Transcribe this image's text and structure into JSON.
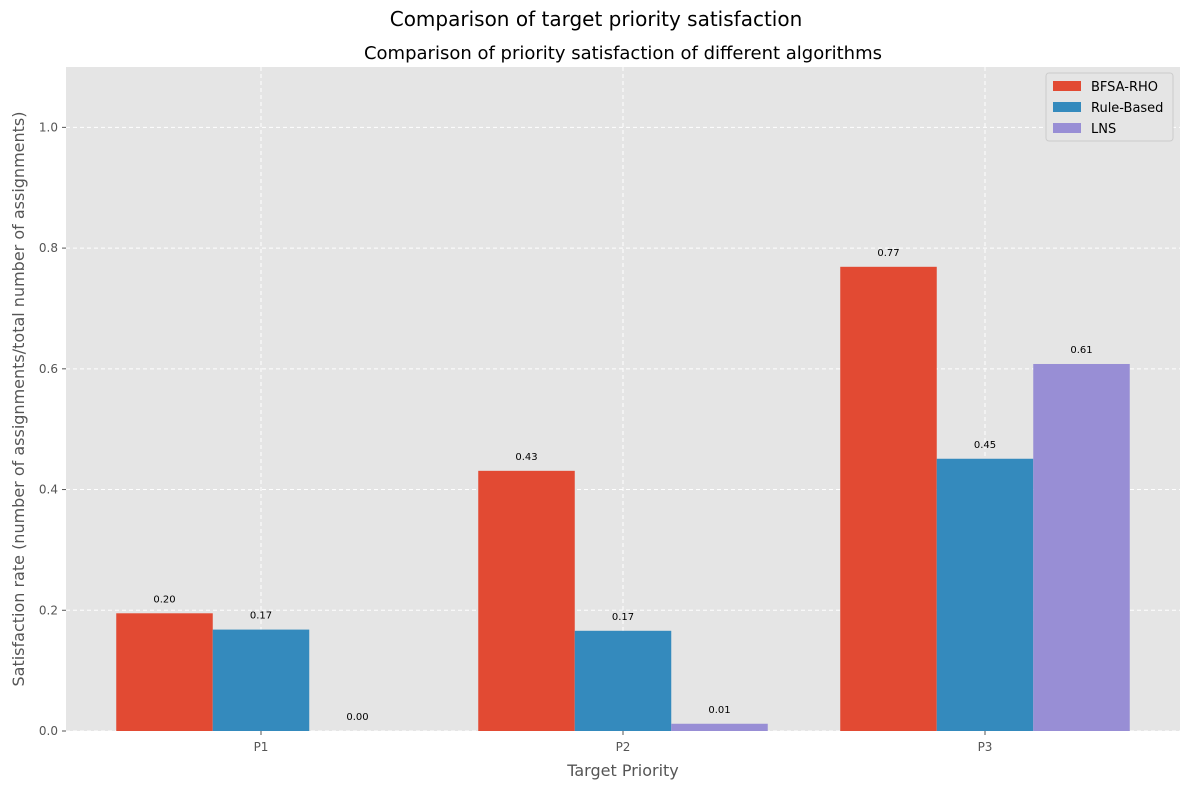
{
  "figure": {
    "suptitle": "Comparison of target priority satisfaction"
  },
  "chart_data": {
    "type": "bar",
    "title": "Comparison of priority satisfaction of different algorithms",
    "xlabel": "Target Priority",
    "ylabel": "Satisfaction rate (number of assignments/total number of assignments)",
    "categories": [
      "P1",
      "P2",
      "P3"
    ],
    "series": [
      {
        "name": "BFSA-RHO",
        "color": "#E24A33",
        "values": [
          0.195,
          0.431,
          0.769
        ],
        "labels": [
          "0.20",
          "0.43",
          "0.77"
        ]
      },
      {
        "name": "Rule-Based",
        "color": "#348ABD",
        "values": [
          0.168,
          0.166,
          0.451
        ],
        "labels": [
          "0.17",
          "0.17",
          "0.45"
        ]
      },
      {
        "name": "LNS",
        "color": "#988ED5",
        "values": [
          0.0,
          0.012,
          0.608
        ],
        "labels": [
          "0.00",
          "0.01",
          "0.61"
        ]
      }
    ],
    "ylim": [
      0,
      1.1
    ],
    "yticks": [
      0.0,
      0.2,
      0.4,
      0.6,
      0.8,
      1.0
    ],
    "ytick_labels": [
      "0.0",
      "0.2",
      "0.4",
      "0.6",
      "0.8",
      "1.0"
    ],
    "grid": true,
    "legend_position": "top-right",
    "background_color": "#E5E5E5"
  }
}
